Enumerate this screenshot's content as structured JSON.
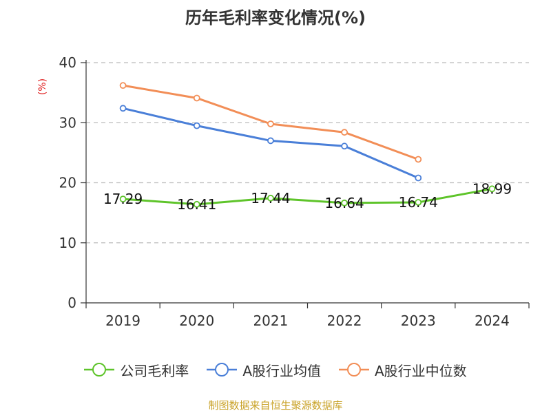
{
  "title": "历年毛利率变化情况(%)",
  "source": "制图数据来自恒生聚源数据库",
  "colors": {
    "company": "#5ec42a",
    "industry_avg": "#4a7fd8",
    "industry_median": "#f28e57"
  },
  "chart_data": {
    "type": "line",
    "title": "历年毛利率变化情况(%)",
    "ylabel": "(%)",
    "xlabel": "",
    "ylim": [
      0,
      40
    ],
    "yticks": [
      0,
      10,
      20,
      30,
      40
    ],
    "categories": [
      "2019",
      "2020",
      "2021",
      "2022",
      "2023",
      "2024"
    ],
    "grid": true,
    "legend_position": "bottom",
    "series": [
      {
        "name": "公司毛利率",
        "color": "#5ec42a",
        "values": [
          17.29,
          16.41,
          17.44,
          16.64,
          16.74,
          18.99
        ],
        "labels": [
          "17.29",
          "16.41",
          "17.44",
          "16.64",
          "16.74",
          "18.99"
        ]
      },
      {
        "name": "A股行业均值",
        "color": "#4a7fd8",
        "values": [
          32.4,
          29.5,
          27.0,
          26.1,
          20.8,
          null
        ]
      },
      {
        "name": "A股行业中位数",
        "color": "#f28e57",
        "values": [
          36.2,
          34.1,
          29.8,
          28.4,
          23.9,
          null
        ]
      }
    ]
  }
}
